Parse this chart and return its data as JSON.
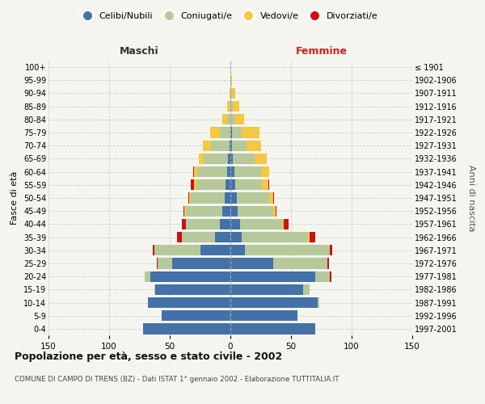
{
  "age_groups": [
    "0-4",
    "5-9",
    "10-14",
    "15-19",
    "20-24",
    "25-29",
    "30-34",
    "35-39",
    "40-44",
    "45-49",
    "50-54",
    "55-59",
    "60-64",
    "65-69",
    "70-74",
    "75-79",
    "80-84",
    "85-89",
    "90-94",
    "95-99",
    "100+"
  ],
  "birth_years": [
    "1997-2001",
    "1992-1996",
    "1987-1991",
    "1982-1986",
    "1977-1981",
    "1972-1976",
    "1967-1971",
    "1962-1966",
    "1957-1961",
    "1952-1956",
    "1947-1951",
    "1942-1946",
    "1937-1941",
    "1932-1936",
    "1927-1931",
    "1922-1926",
    "1917-1921",
    "1912-1916",
    "1907-1911",
    "1902-1906",
    "≤ 1901"
  ],
  "male": {
    "celibi": [
      72,
      57,
      68,
      62,
      66,
      48,
      25,
      13,
      9,
      7,
      5,
      4,
      3,
      2,
      1,
      0,
      0,
      0,
      0,
      0,
      0
    ],
    "coniugati": [
      0,
      0,
      0,
      1,
      5,
      12,
      38,
      27,
      28,
      30,
      28,
      24,
      24,
      20,
      15,
      9,
      3,
      1,
      0,
      0,
      0
    ],
    "vedovi": [
      0,
      0,
      0,
      0,
      0,
      0,
      0,
      0,
      0,
      1,
      1,
      2,
      3,
      4,
      7,
      8,
      4,
      2,
      1,
      0,
      0
    ],
    "divorziati": [
      0,
      0,
      0,
      0,
      0,
      1,
      1,
      4,
      3,
      1,
      1,
      3,
      1,
      0,
      0,
      0,
      0,
      0,
      0,
      0,
      0
    ]
  },
  "female": {
    "nubili": [
      70,
      55,
      72,
      60,
      70,
      35,
      12,
      9,
      8,
      6,
      5,
      4,
      3,
      2,
      1,
      1,
      0,
      0,
      0,
      0,
      0
    ],
    "coniugate": [
      0,
      0,
      1,
      5,
      12,
      45,
      70,
      55,
      35,
      29,
      27,
      22,
      22,
      18,
      12,
      8,
      3,
      2,
      1,
      0,
      0
    ],
    "vedove": [
      0,
      0,
      0,
      0,
      0,
      0,
      0,
      1,
      1,
      2,
      3,
      5,
      7,
      10,
      12,
      15,
      8,
      5,
      3,
      1,
      0
    ],
    "divorziate": [
      0,
      0,
      0,
      0,
      1,
      1,
      2,
      5,
      4,
      1,
      1,
      1,
      0,
      0,
      0,
      0,
      0,
      0,
      0,
      0,
      0
    ]
  },
  "color_celibi": "#4472a8",
  "color_coniugati": "#b5c99a",
  "color_vedovi": "#f5c842",
  "color_divorziati": "#cc1111",
  "title": "Popolazione per età, sesso e stato civile - 2002",
  "subtitle": "COMUNE DI CAMPO DI TRENS (BZ) - Dati ISTAT 1° gennaio 2002 - Elaborazione TUTTITALIA.IT",
  "xlabel_left": "Maschi",
  "xlabel_right": "Femmine",
  "ylabel_left": "Fasce di età",
  "ylabel_right": "Anni di nascita",
  "xlim": 150,
  "background_color": "#f5f5f0",
  "grid_color": "#cccccc"
}
